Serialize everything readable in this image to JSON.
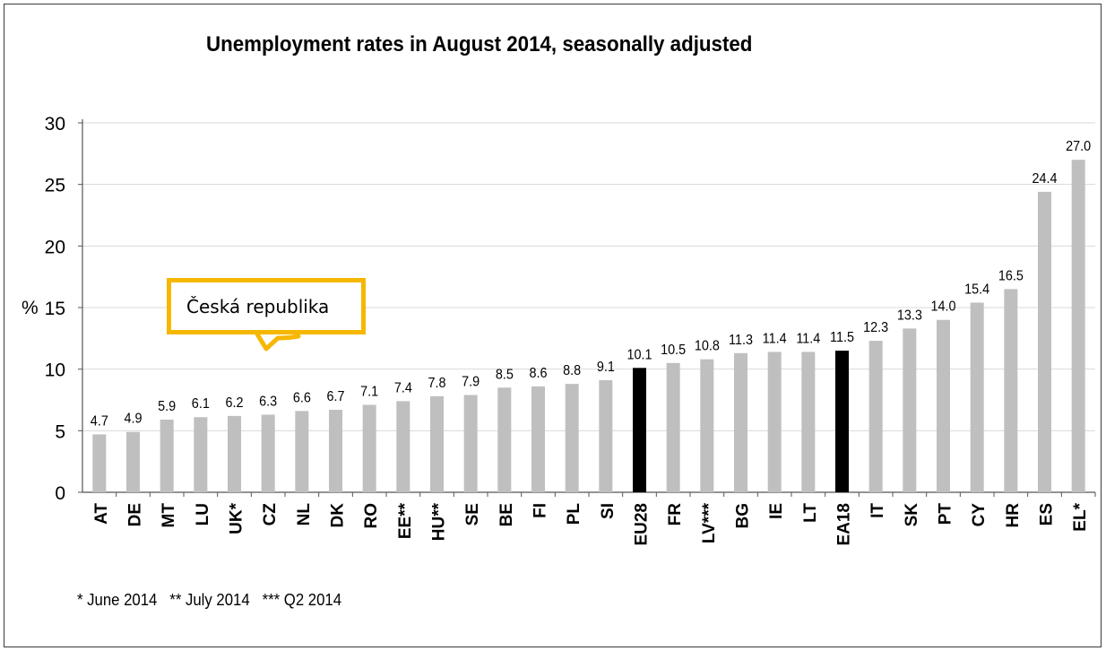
{
  "chart_data": {
    "type": "bar",
    "title": "Unemployment rates in August 2014, seasonally adjusted",
    "ylabel": "%",
    "ylim": [
      0,
      30
    ],
    "yticks": [
      0,
      5,
      10,
      15,
      20,
      25,
      30
    ],
    "grid": true,
    "categories": [
      "AT",
      "DE",
      "MT",
      "LU",
      "UK*",
      "CZ",
      "NL",
      "DK",
      "RO",
      "EE**",
      "HU**",
      "SE",
      "BE",
      "FI",
      "PL",
      "SI",
      "EU28",
      "FR",
      "LV***",
      "BG",
      "IE",
      "LT",
      "EA18",
      "IT",
      "SK",
      "PT",
      "CY",
      "HR",
      "ES",
      "EL*"
    ],
    "values": [
      4.7,
      4.9,
      5.9,
      6.1,
      6.2,
      6.3,
      6.6,
      6.7,
      7.1,
      7.4,
      7.8,
      7.9,
      8.5,
      8.6,
      8.8,
      9.1,
      10.1,
      10.5,
      10.8,
      11.3,
      11.4,
      11.4,
      11.5,
      12.3,
      13.3,
      14.0,
      15.4,
      16.5,
      24.4,
      27.0
    ],
    "value_labels": [
      "4.7",
      "4.9",
      "5.9",
      "6.1",
      "6.2",
      "6.3",
      "6.6",
      "6.7",
      "7.1",
      "7.4",
      "7.8",
      "7.9",
      "8.5",
      "8.6",
      "8.8",
      "9.1",
      "10.1",
      "10.5",
      "10.8",
      "11.3",
      "11.4",
      "11.4",
      "11.5",
      "12.3",
      "13.3",
      "14.0",
      "15.4",
      "16.5",
      "24.4",
      "27.0"
    ],
    "highlighted": [
      "EU28",
      "EA18"
    ],
    "colors": {
      "bar": "#bfbfbf",
      "highlight": "#000000",
      "grid": "#d9d9d9",
      "callout_border": "#f6b700"
    },
    "annotation": {
      "text": "Česká republika",
      "target": "CZ"
    },
    "footnote": "* June 2014   ** July 2014   *** Q2 2014"
  }
}
